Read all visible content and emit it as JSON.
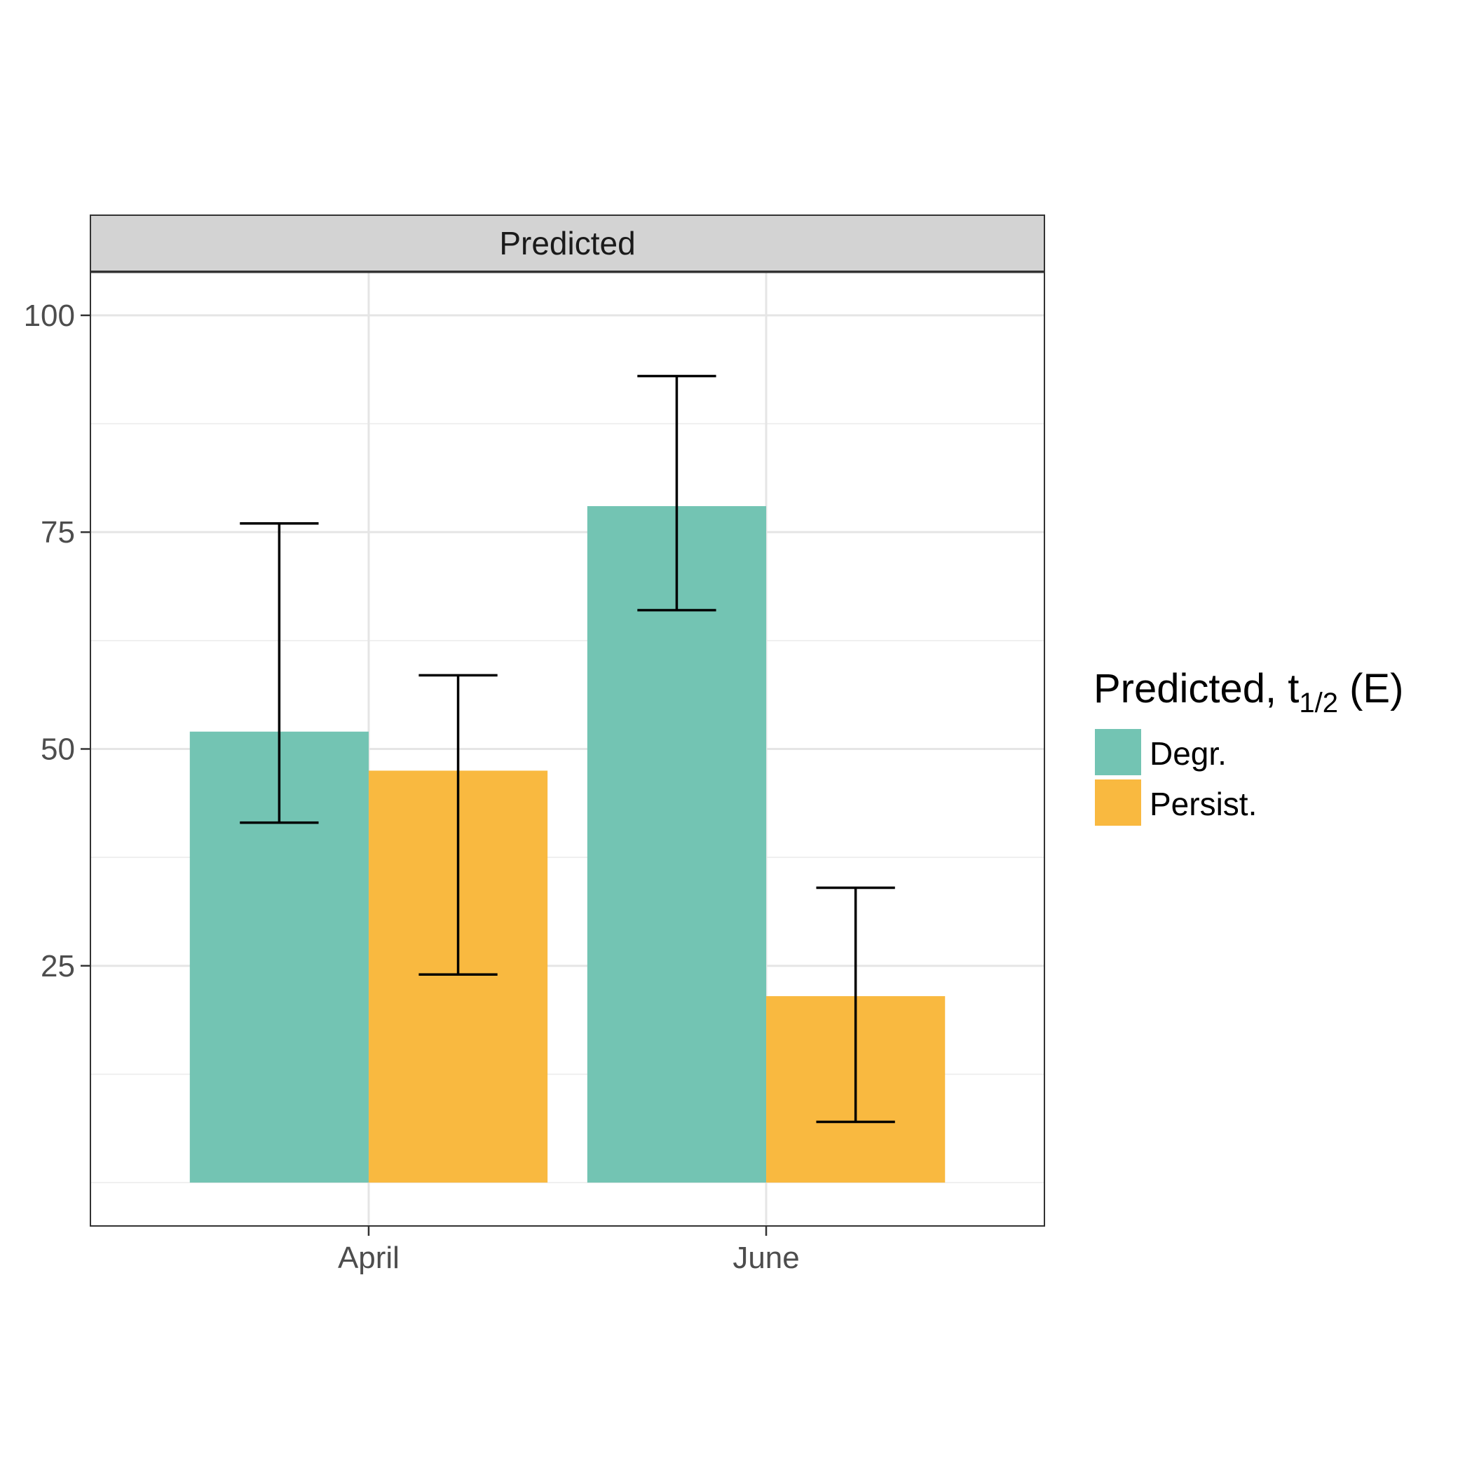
{
  "chart_data": {
    "type": "bar",
    "facet_label": "Predicted",
    "categories": [
      "April",
      "June"
    ],
    "series": [
      {
        "name": "Degr.",
        "color": "#73c4b3",
        "values": [
          52,
          78
        ],
        "error_low": [
          41.5,
          66
        ],
        "error_high": [
          76,
          93
        ]
      },
      {
        "name": "Persist.",
        "color": "#f9b940",
        "values": [
          47.5,
          21.5
        ],
        "error_low": [
          24,
          7
        ],
        "error_high": [
          58.5,
          34
        ]
      }
    ],
    "ylim": [
      -5,
      105
    ],
    "y_ticks": [
      25,
      50,
      75,
      100
    ],
    "y_minor_ticks": [
      0,
      12.5,
      37.5,
      62.5,
      87.5
    ],
    "grid": true,
    "legend": {
      "title_main": "Predicted,  t",
      "title_subscript": "1/2",
      "title_tail": " (E)",
      "position": "right"
    }
  }
}
